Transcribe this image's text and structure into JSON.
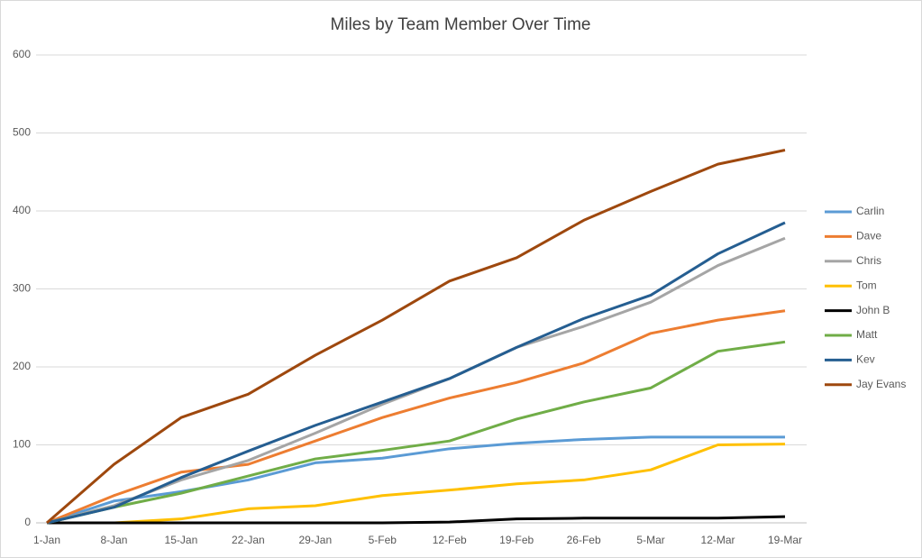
{
  "chart_data": {
    "type": "line",
    "title": "Miles by Team Member Over Time",
    "categories": [
      "1-Jan",
      "8-Jan",
      "15-Jan",
      "22-Jan",
      "29-Jan",
      "5-Feb",
      "12-Feb",
      "19-Feb",
      "26-Feb",
      "5-Mar",
      "12-Mar",
      "19-Mar"
    ],
    "series": [
      {
        "name": "Carlin",
        "color": "#5b9bd5",
        "values": [
          0,
          28,
          40,
          55,
          77,
          83,
          95,
          102,
          107,
          110,
          110,
          110
        ]
      },
      {
        "name": "Dave",
        "color": "#ed7d31",
        "values": [
          0,
          35,
          65,
          75,
          105,
          135,
          160,
          180,
          205,
          243,
          260,
          272
        ]
      },
      {
        "name": "Chris",
        "color": "#a5a5a5",
        "values": [
          0,
          22,
          55,
          80,
          115,
          152,
          185,
          225,
          252,
          283,
          330,
          365
        ]
      },
      {
        "name": "Tom",
        "color": "#ffc000",
        "values": [
          0,
          0,
          5,
          18,
          22,
          35,
          42,
          50,
          55,
          68,
          100,
          101
        ]
      },
      {
        "name": "John B",
        "color": "#000000",
        "values": [
          0,
          0,
          0,
          0,
          0,
          0,
          1,
          5,
          6,
          6,
          6,
          8
        ]
      },
      {
        "name": "Matt",
        "color": "#70ad47",
        "values": [
          0,
          20,
          38,
          60,
          82,
          93,
          105,
          133,
          155,
          173,
          220,
          232
        ]
      },
      {
        "name": "Kev",
        "color": "#255e91",
        "values": [
          0,
          20,
          58,
          92,
          125,
          155,
          185,
          225,
          262,
          292,
          345,
          385
        ]
      },
      {
        "name": "Jay Evans",
        "color": "#9e480e",
        "values": [
          0,
          75,
          135,
          165,
          215,
          260,
          310,
          340,
          388,
          425,
          460,
          478
        ]
      }
    ],
    "ylim": [
      0,
      600
    ],
    "yticks": [
      0,
      100,
      200,
      300,
      400,
      500,
      600
    ],
    "grid": true,
    "legend": "right"
  }
}
